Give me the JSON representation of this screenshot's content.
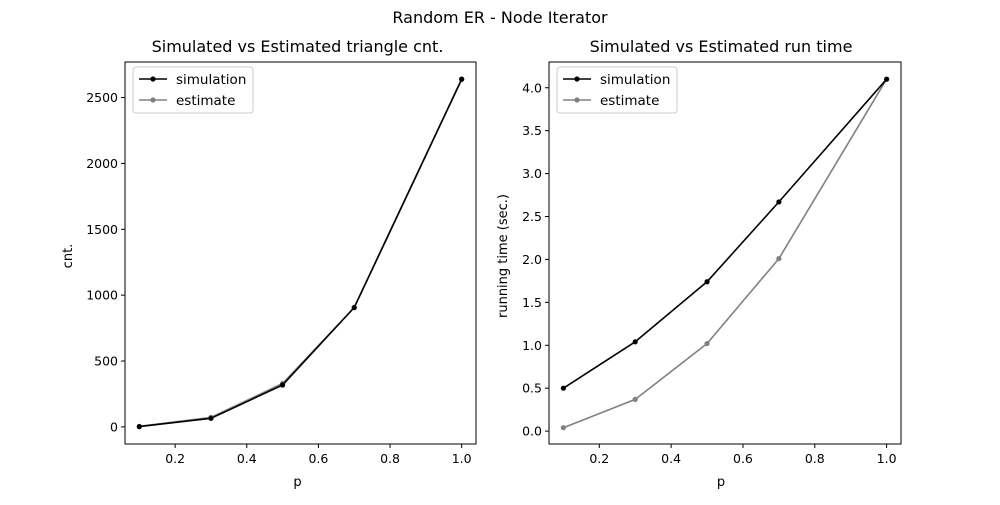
{
  "figure": {
    "title": "Random ER - Node Iterator"
  },
  "chart_data": [
    {
      "type": "line",
      "title": "Simulated vs Estimated triangle cnt.",
      "xlabel": "p",
      "ylabel": "cnt.",
      "xlim": [
        0.06,
        1.04
      ],
      "ylim": [
        -130,
        2770
      ],
      "xticks": [
        {
          "value": 0.2,
          "label": "0.2"
        },
        {
          "value": 0.4,
          "label": "0.4"
        },
        {
          "value": 0.6,
          "label": "0.6"
        },
        {
          "value": 0.8,
          "label": "0.8"
        },
        {
          "value": 1.0,
          "label": "1.0"
        }
      ],
      "yticks": [
        {
          "value": 0,
          "label": "0"
        },
        {
          "value": 500,
          "label": "500"
        },
        {
          "value": 1000,
          "label": "1000"
        },
        {
          "value": 1500,
          "label": "1500"
        },
        {
          "value": 2000,
          "label": "2000"
        },
        {
          "value": 2500,
          "label": "2500"
        }
      ],
      "x": [
        0.1,
        0.3,
        0.5,
        0.7,
        1.0
      ],
      "series": [
        {
          "name": "simulation",
          "color": "#000000",
          "values": [
            2,
            65,
            318,
            906,
            2640
          ]
        },
        {
          "name": "estimate",
          "color": "#808080",
          "values": [
            4,
            72,
            330,
            905,
            2638
          ]
        }
      ],
      "legend": "top-left",
      "grid": false
    },
    {
      "type": "line",
      "title": "Simulated vs Estimated run time",
      "xlabel": "p",
      "ylabel": "running time (sec.)",
      "xlim": [
        0.06,
        1.04
      ],
      "ylim": [
        -0.15,
        4.3
      ],
      "xticks": [
        {
          "value": 0.2,
          "label": "0.2"
        },
        {
          "value": 0.4,
          "label": "0.4"
        },
        {
          "value": 0.6,
          "label": "0.6"
        },
        {
          "value": 0.8,
          "label": "0.8"
        },
        {
          "value": 1.0,
          "label": "1.0"
        }
      ],
      "yticks": [
        {
          "value": 0.0,
          "label": "0.0"
        },
        {
          "value": 0.5,
          "label": "0.5"
        },
        {
          "value": 1.0,
          "label": "1.0"
        },
        {
          "value": 1.5,
          "label": "1.5"
        },
        {
          "value": 2.0,
          "label": "2.0"
        },
        {
          "value": 2.5,
          "label": "2.5"
        },
        {
          "value": 3.0,
          "label": "3.0"
        },
        {
          "value": 3.5,
          "label": "3.5"
        },
        {
          "value": 4.0,
          "label": "4.0"
        }
      ],
      "x": [
        0.1,
        0.3,
        0.5,
        0.7,
        1.0
      ],
      "series": [
        {
          "name": "simulation",
          "color": "#000000",
          "values": [
            0.5,
            1.04,
            1.74,
            2.67,
            4.1
          ]
        },
        {
          "name": "estimate",
          "color": "#808080",
          "values": [
            0.04,
            0.37,
            1.02,
            2.01,
            4.1
          ]
        }
      ],
      "legend": "top-left",
      "grid": false
    }
  ]
}
